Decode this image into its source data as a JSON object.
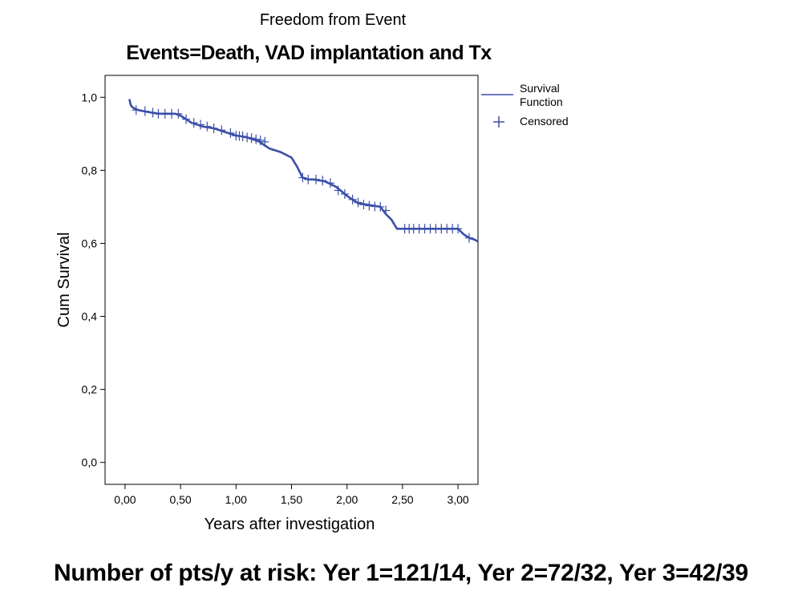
{
  "chart_data": {
    "type": "line",
    "title": "Freedom from Event",
    "subtitle": "Events=Death, VAD implantation and Tx",
    "xlabel": "Years after investigation",
    "ylabel": "Cum Survival",
    "xlim": [
      -0.18,
      3.18
    ],
    "ylim": [
      -0.06,
      1.06
    ],
    "x_ticks": [
      0,
      0.5,
      1,
      1.5,
      2,
      2.5,
      3
    ],
    "x_tick_labels": [
      "0,00",
      "0,50",
      "1,00",
      "1,50",
      "2,00",
      "2,50",
      "3,00"
    ],
    "y_ticks": [
      0,
      0.2,
      0.4,
      0.6,
      0.8,
      1.0
    ],
    "y_tick_labels": [
      "0,0",
      "0,2",
      "0,4",
      "0,6",
      "0,8",
      "1,0"
    ],
    "grid": false,
    "legend": {
      "position": "outside-right",
      "entries": [
        "Survival Function",
        "Censored"
      ]
    },
    "color": "#3a4fa8",
    "series": [
      {
        "name": "Survival Function",
        "x": [
          0.04,
          0.05,
          0.06,
          0.08,
          0.12,
          0.2,
          0.3,
          0.45,
          0.5,
          0.55,
          0.6,
          0.7,
          0.8,
          0.9,
          1.0,
          1.05,
          1.1,
          1.2,
          1.3,
          1.4,
          1.5,
          1.55,
          1.6,
          1.65,
          1.7,
          1.8,
          1.9,
          2.0,
          2.05,
          2.1,
          2.2,
          2.3,
          2.35,
          2.4,
          2.45,
          2.5,
          2.6,
          3.0,
          3.05,
          3.1,
          3.15,
          3.18
        ],
        "y": [
          0.995,
          0.98,
          0.975,
          0.97,
          0.965,
          0.96,
          0.955,
          0.955,
          0.95,
          0.94,
          0.93,
          0.92,
          0.915,
          0.905,
          0.895,
          0.893,
          0.89,
          0.88,
          0.86,
          0.85,
          0.835,
          0.81,
          0.78,
          0.775,
          0.775,
          0.77,
          0.755,
          0.73,
          0.72,
          0.71,
          0.705,
          0.7,
          0.68,
          0.665,
          0.64,
          0.64,
          0.64,
          0.64,
          0.625,
          0.615,
          0.61,
          0.605
        ]
      },
      {
        "name": "Censored",
        "x": [
          0.1,
          0.18,
          0.25,
          0.3,
          0.36,
          0.42,
          0.48,
          0.55,
          0.62,
          0.68,
          0.74,
          0.8,
          0.87,
          0.95,
          1.0,
          1.03,
          1.06,
          1.1,
          1.14,
          1.18,
          1.22,
          1.26,
          1.6,
          1.65,
          1.72,
          1.78,
          1.85,
          1.92,
          1.98,
          2.05,
          2.1,
          2.15,
          2.2,
          2.25,
          2.3,
          2.35,
          2.52,
          2.56,
          2.6,
          2.65,
          2.7,
          2.75,
          2.8,
          2.85,
          2.9,
          2.95,
          3.0,
          3.1
        ],
        "y": [
          0.965,
          0.962,
          0.958,
          0.955,
          0.955,
          0.955,
          0.955,
          0.94,
          0.93,
          0.925,
          0.92,
          0.915,
          0.91,
          0.902,
          0.895,
          0.894,
          0.893,
          0.89,
          0.888,
          0.885,
          0.882,
          0.878,
          0.78,
          0.775,
          0.775,
          0.772,
          0.765,
          0.745,
          0.735,
          0.72,
          0.712,
          0.706,
          0.703,
          0.701,
          0.7,
          0.69,
          0.64,
          0.64,
          0.64,
          0.64,
          0.64,
          0.64,
          0.64,
          0.64,
          0.64,
          0.64,
          0.64,
          0.615
        ]
      }
    ]
  },
  "legend": {
    "survival_line1": "Survival",
    "survival_line2": "Function",
    "censored": "Censored"
  },
  "footer": "Number of pts/y at risk: Yer 1=121/14, Yer 2=72/32, Yer 3=42/39"
}
